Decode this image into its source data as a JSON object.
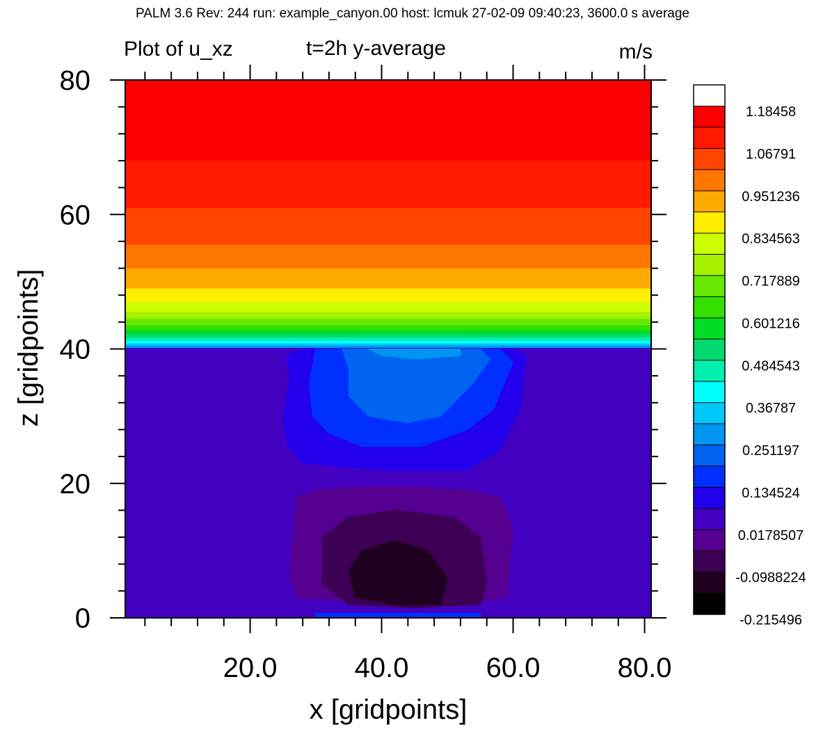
{
  "header": "PALM 3.6  Rev: 244  run: example_canyon.00  host: lcmuk  27-02-09 09:40:23,  3600.0 s average",
  "chart_data": {
    "type": "heatmap",
    "title": "Plot of u_xz",
    "subtitle": "t=2h  y-average",
    "units": "m/s",
    "xlabel": "x [gridpoints]",
    "ylabel": "z [gridpoints]",
    "xlim": [
      1,
      81
    ],
    "ylim": [
      0,
      80
    ],
    "x_ticks": [
      20.0,
      40.0,
      60.0,
      80.0
    ],
    "x_tick_labels": [
      "20.0",
      "40.0",
      "60.0",
      "80.0"
    ],
    "y_ticks": [
      0,
      20,
      40,
      60,
      80
    ],
    "y_tick_labels": [
      "0",
      "20",
      "40",
      "60",
      "80"
    ],
    "colorbar": {
      "colors": [
        "#ffffff",
        "#ff0000",
        "#ff1a00",
        "#ff4500",
        "#ff7700",
        "#ffaa00",
        "#ffee00",
        "#ccff00",
        "#a6f000",
        "#66e800",
        "#33e000",
        "#00dd22",
        "#00d870",
        "#00f0b0",
        "#00ffff",
        "#00c8f8",
        "#0096f0",
        "#0064f0",
        "#0030ff",
        "#2200ee",
        "#4400c0",
        "#550090",
        "#3d0055",
        "#200020",
        "#000000"
      ],
      "labels": [
        "1.18458",
        "1.06791",
        "0.951236",
        "0.834563",
        "0.717889",
        "0.601216",
        "0.484543",
        "0.36787",
        "0.251197",
        "0.134524",
        "0.0178507",
        "-0.0988224",
        "-0.215496"
      ]
    },
    "field": {
      "background_level": 20,
      "upper_bands": [
        {
          "z": [
            68,
            80
          ],
          "level": 1
        },
        {
          "z": [
            61,
            68
          ],
          "level": 2
        },
        {
          "z": [
            55.5,
            61
          ],
          "level": 3
        },
        {
          "z": [
            52,
            55.5
          ],
          "level": 4
        },
        {
          "z": [
            49,
            52
          ],
          "level": 5
        },
        {
          "z": [
            47,
            49
          ],
          "level": 6
        },
        {
          "z": [
            45.5,
            47
          ],
          "level": 7
        },
        {
          "z": [
            44.5,
            45.5
          ],
          "level": 8
        },
        {
          "z": [
            43.5,
            44.5
          ],
          "level": 9
        },
        {
          "z": [
            42.8,
            43.5
          ],
          "level": 10
        },
        {
          "z": [
            42.2,
            42.8
          ],
          "level": 11
        },
        {
          "z": [
            41.7,
            42.2
          ],
          "level": 12
        },
        {
          "z": [
            41.2,
            41.7
          ],
          "level": 13
        },
        {
          "z": [
            40.8,
            41.2
          ],
          "level": 14
        },
        {
          "z": [
            40.5,
            40.8
          ],
          "level": 15
        },
        {
          "z": [
            40.2,
            40.5
          ],
          "level": 16
        }
      ],
      "regions": [
        {
          "level": 19,
          "points": [
            [
              25.5,
              39
            ],
            [
              28,
              40
            ],
            [
              60,
              40
            ],
            [
              62,
              39
            ],
            [
              61,
              31
            ],
            [
              58,
              25
            ],
            [
              53,
              22
            ],
            [
              40,
              22
            ],
            [
              28,
              23
            ],
            [
              25.5,
              26
            ],
            [
              25,
              30
            ],
            [
              26,
              35
            ]
          ]
        },
        {
          "level": 18,
          "points": [
            [
              30,
              40
            ],
            [
              58,
              40
            ],
            [
              60,
              38
            ],
            [
              57,
              31
            ],
            [
              53,
              28
            ],
            [
              46,
              25.5
            ],
            [
              37,
              25.5
            ],
            [
              32,
              27.5
            ],
            [
              29.5,
              30
            ],
            [
              29,
              35
            ]
          ]
        },
        {
          "level": 17,
          "points": [
            [
              34,
              40
            ],
            [
              55,
              40
            ],
            [
              56.5,
              38.5
            ],
            [
              54,
              35
            ],
            [
              49,
              30
            ],
            [
              44,
              29
            ],
            [
              38,
              30
            ],
            [
              35,
              33
            ],
            [
              35,
              37
            ]
          ]
        },
        {
          "level": 16,
          "points": [
            [
              38,
              40
            ],
            [
              52,
              40
            ],
            [
              52,
              39
            ],
            [
              45,
              38.5
            ],
            [
              40,
              39
            ]
          ]
        },
        {
          "level": 21,
          "points": [
            [
              27,
              18
            ],
            [
              30,
              19
            ],
            [
              36,
              19.5
            ],
            [
              45,
              19.5
            ],
            [
              53,
              19
            ],
            [
              58,
              18
            ],
            [
              60,
              13
            ],
            [
              59,
              3
            ],
            [
              52,
              2
            ],
            [
              40,
              2
            ],
            [
              27,
              3
            ],
            [
              26,
              6
            ],
            [
              26.5,
              12
            ]
          ]
        },
        {
          "level": 22,
          "points": [
            [
              31,
              12
            ],
            [
              35,
              15
            ],
            [
              42,
              16
            ],
            [
              51,
              15
            ],
            [
              55,
              12
            ],
            [
              56,
              5
            ],
            [
              55,
              2
            ],
            [
              45,
              1.5
            ],
            [
              35,
              2
            ],
            [
              31,
              5
            ]
          ]
        },
        {
          "level": 23,
          "points": [
            [
              35,
              7
            ],
            [
              37,
              10
            ],
            [
              42,
              11.5
            ],
            [
              47,
              10
            ],
            [
              50,
              6
            ],
            [
              49,
              2
            ],
            [
              43,
              1.8
            ],
            [
              36,
              3
            ]
          ]
        },
        {
          "level": 18,
          "points": [
            [
              30,
              0.7
            ],
            [
              55,
              0.7
            ],
            [
              55,
              0
            ],
            [
              30,
              0
            ]
          ]
        }
      ]
    }
  }
}
